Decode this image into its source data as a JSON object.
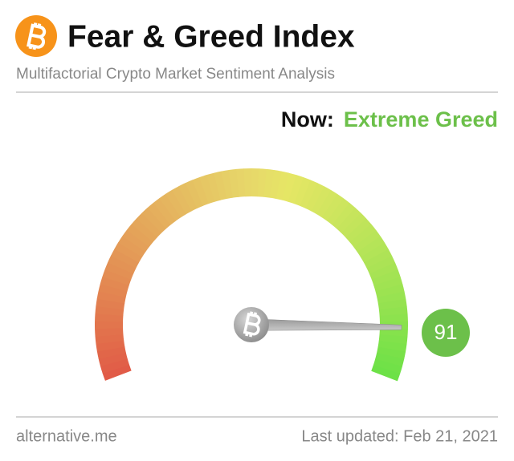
{
  "chart_data": {
    "type": "gauge",
    "title": "Fear & Greed Index",
    "subtitle": "Multifactorial Crypto Market Sentiment Analysis",
    "now_label": "Now:",
    "classification": "Extreme Greed",
    "value": 91,
    "ylim": [
      0,
      100
    ],
    "color": "#6cc04a",
    "source": "alternative.me",
    "updated": "Last updated: Feb 21, 2021"
  }
}
